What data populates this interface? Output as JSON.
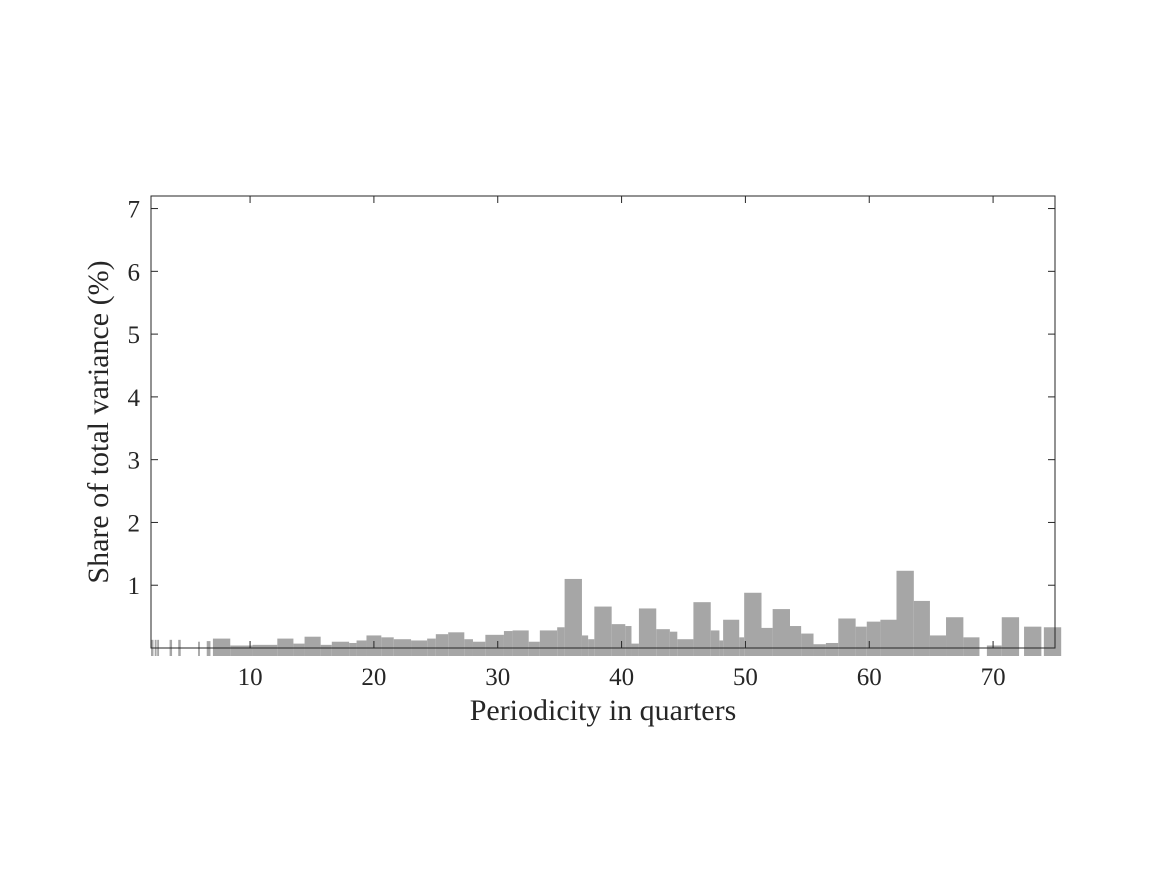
{
  "chart_data": {
    "type": "bar",
    "title": "",
    "xlabel": "Periodicity in quarters",
    "ylabel": "Share of total variance (%)",
    "xlim": [
      2,
      75
    ],
    "ylim": [
      0,
      7.2
    ],
    "xticks": [
      10,
      20,
      30,
      40,
      50,
      60,
      70
    ],
    "yticks": [
      1,
      2,
      3,
      4,
      5,
      6,
      7
    ],
    "grid": false,
    "bar_color": "#a6a6a6",
    "series": [
      {
        "bars": [
          {
            "x0": 2.0,
            "x1": 2.2,
            "y": 0.13
          },
          {
            "x0": 2.3,
            "x1": 2.45,
            "y": 0.13
          },
          {
            "x0": 2.5,
            "x1": 2.65,
            "y": 0.13
          },
          {
            "x0": 3.5,
            "x1": 3.7,
            "y": 0.13
          },
          {
            "x0": 4.2,
            "x1": 4.4,
            "y": 0.13
          },
          {
            "x0": 5.8,
            "x1": 5.95,
            "y": 0.1
          },
          {
            "x0": 6.5,
            "x1": 6.8,
            "y": 0.11
          },
          {
            "x0": 7.0,
            "x1": 8.4,
            "y": 0.15
          },
          {
            "x0": 8.4,
            "x1": 10.2,
            "y": 0.04
          },
          {
            "x0": 10.2,
            "x1": 12.2,
            "y": 0.05
          },
          {
            "x0": 12.2,
            "x1": 13.5,
            "y": 0.15
          },
          {
            "x0": 13.5,
            "x1": 14.4,
            "y": 0.07
          },
          {
            "x0": 14.4,
            "x1": 15.7,
            "y": 0.18
          },
          {
            "x0": 15.7,
            "x1": 16.6,
            "y": 0.05
          },
          {
            "x0": 16.6,
            "x1": 18.0,
            "y": 0.1
          },
          {
            "x0": 18.0,
            "x1": 18.6,
            "y": 0.08
          },
          {
            "x0": 18.6,
            "x1": 19.4,
            "y": 0.12
          },
          {
            "x0": 19.4,
            "x1": 20.6,
            "y": 0.2
          },
          {
            "x0": 20.6,
            "x1": 21.6,
            "y": 0.17
          },
          {
            "x0": 21.6,
            "x1": 23.0,
            "y": 0.14
          },
          {
            "x0": 23.0,
            "x1": 24.3,
            "y": 0.12
          },
          {
            "x0": 24.3,
            "x1": 25.0,
            "y": 0.15
          },
          {
            "x0": 25.0,
            "x1": 26.0,
            "y": 0.22
          },
          {
            "x0": 26.0,
            "x1": 27.3,
            "y": 0.25
          },
          {
            "x0": 27.3,
            "x1": 28.0,
            "y": 0.14
          },
          {
            "x0": 28.0,
            "x1": 29.0,
            "y": 0.1
          },
          {
            "x0": 29.0,
            "x1": 30.5,
            "y": 0.21
          },
          {
            "x0": 30.5,
            "x1": 31.2,
            "y": 0.27
          },
          {
            "x0": 31.2,
            "x1": 32.5,
            "y": 0.28
          },
          {
            "x0": 32.5,
            "x1": 33.4,
            "y": 0.1
          },
          {
            "x0": 33.4,
            "x1": 34.8,
            "y": 0.28
          },
          {
            "x0": 34.8,
            "x1": 35.4,
            "y": 0.33
          },
          {
            "x0": 35.4,
            "x1": 36.8,
            "y": 1.1
          },
          {
            "x0": 36.8,
            "x1": 37.3,
            "y": 0.2
          },
          {
            "x0": 37.3,
            "x1": 37.8,
            "y": 0.14
          },
          {
            "x0": 37.8,
            "x1": 39.2,
            "y": 0.66
          },
          {
            "x0": 39.2,
            "x1": 40.3,
            "y": 0.38
          },
          {
            "x0": 40.3,
            "x1": 40.8,
            "y": 0.35
          },
          {
            "x0": 40.8,
            "x1": 41.4,
            "y": 0.07
          },
          {
            "x0": 41.4,
            "x1": 42.8,
            "y": 0.63
          },
          {
            "x0": 42.8,
            "x1": 43.9,
            "y": 0.3
          },
          {
            "x0": 43.9,
            "x1": 44.5,
            "y": 0.26
          },
          {
            "x0": 44.5,
            "x1": 45.8,
            "y": 0.14
          },
          {
            "x0": 45.8,
            "x1": 47.2,
            "y": 0.73
          },
          {
            "x0": 47.2,
            "x1": 47.9,
            "y": 0.28
          },
          {
            "x0": 47.9,
            "x1": 48.2,
            "y": 0.12
          },
          {
            "x0": 48.2,
            "x1": 49.5,
            "y": 0.45
          },
          {
            "x0": 49.5,
            "x1": 49.9,
            "y": 0.17
          },
          {
            "x0": 49.9,
            "x1": 51.3,
            "y": 0.88
          },
          {
            "x0": 51.3,
            "x1": 52.2,
            "y": 0.32
          },
          {
            "x0": 52.2,
            "x1": 53.6,
            "y": 0.62
          },
          {
            "x0": 53.6,
            "x1": 54.5,
            "y": 0.35
          },
          {
            "x0": 54.5,
            "x1": 55.5,
            "y": 0.23
          },
          {
            "x0": 55.5,
            "x1": 56.5,
            "y": 0.06
          },
          {
            "x0": 56.5,
            "x1": 57.5,
            "y": 0.08
          },
          {
            "x0": 57.5,
            "x1": 58.9,
            "y": 0.47
          },
          {
            "x0": 58.9,
            "x1": 59.8,
            "y": 0.34
          },
          {
            "x0": 59.8,
            "x1": 60.9,
            "y": 0.42
          },
          {
            "x0": 60.9,
            "x1": 62.2,
            "y": 0.45
          },
          {
            "x0": 62.2,
            "x1": 63.6,
            "y": 1.23
          },
          {
            "x0": 63.6,
            "x1": 64.9,
            "y": 0.75
          },
          {
            "x0": 64.9,
            "x1": 66.2,
            "y": 0.2
          },
          {
            "x0": 66.2,
            "x1": 67.6,
            "y": 0.49
          },
          {
            "x0": 67.6,
            "x1": 68.9,
            "y": 0.17
          },
          {
            "x0": 69.5,
            "x1": 70.7,
            "y": 0.04
          },
          {
            "x0": 70.7,
            "x1": 72.1,
            "y": 0.49
          },
          {
            "x0": 72.5,
            "x1": 73.9,
            "y": 0.34
          },
          {
            "x0": 74.1,
            "x1": 75.5,
            "y": 0.33
          }
        ]
      }
    ]
  }
}
